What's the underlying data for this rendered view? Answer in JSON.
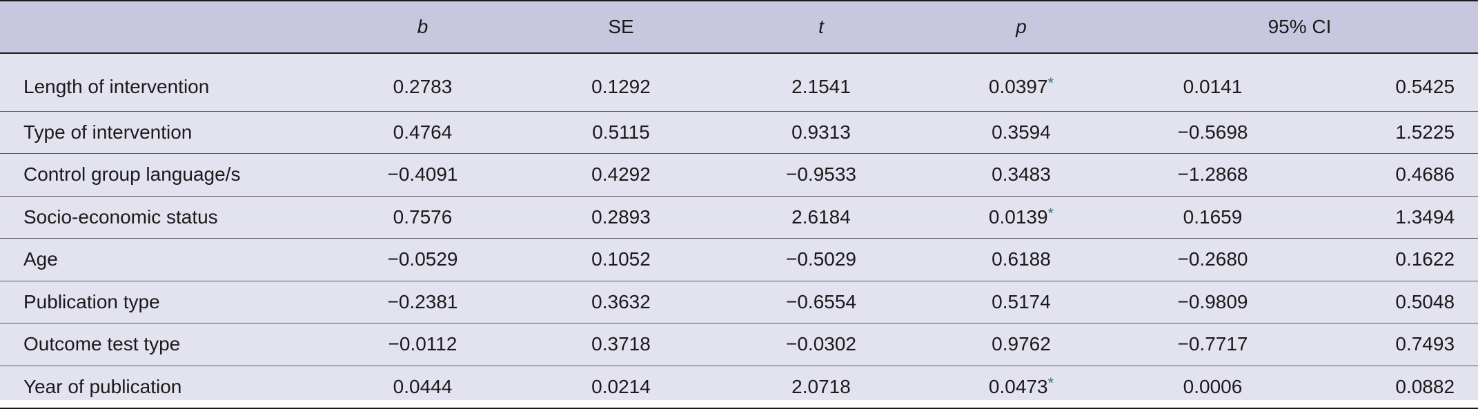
{
  "table": {
    "headers": {
      "b": "b",
      "se": "SE",
      "t": "t",
      "p": "p",
      "ci": "95% CI"
    },
    "sig_marker": "*",
    "rows": [
      {
        "label": "Length of intervention",
        "b": "0.2783",
        "se": "0.1292",
        "t": "2.1541",
        "p": "0.0397",
        "p_sig": "*",
        "ci_lower": "0.0141",
        "ci_upper": "0.5425"
      },
      {
        "label": "Type of intervention",
        "b": "0.4764",
        "se": "0.5115",
        "t": "0.9313",
        "p": "0.3594",
        "p_sig": "",
        "ci_lower": "−0.5698",
        "ci_upper": "1.5225"
      },
      {
        "label": "Control group language/s",
        "b": "−0.4091",
        "se": "0.4292",
        "t": "−0.9533",
        "p": "0.3483",
        "p_sig": "",
        "ci_lower": "−1.2868",
        "ci_upper": "0.4686"
      },
      {
        "label": "Socio-economic status",
        "b": "0.7576",
        "se": "0.2893",
        "t": "2.6184",
        "p": "0.0139",
        "p_sig": "*",
        "ci_lower": "0.1659",
        "ci_upper": "1.3494"
      },
      {
        "label": "Age",
        "b": "−0.0529",
        "se": "0.1052",
        "t": "−0.5029",
        "p": "0.6188",
        "p_sig": "",
        "ci_lower": "−0.2680",
        "ci_upper": "0.1622"
      },
      {
        "label": "Publication type",
        "b": "−0.2381",
        "se": "0.3632",
        "t": "−0.6554",
        "p": "0.5174",
        "p_sig": "",
        "ci_lower": "−0.9809",
        "ci_upper": "0.5048"
      },
      {
        "label": "Outcome test type",
        "b": "−0.0112",
        "se": "0.3718",
        "t": "−0.0302",
        "p": "0.9762",
        "p_sig": "",
        "ci_lower": "−0.7717",
        "ci_upper": "0.7493"
      },
      {
        "label": "Year of publication",
        "b": "0.0444",
        "se": "0.0214",
        "t": "2.0718",
        "p": "0.0473",
        "p_sig": "*",
        "ci_lower": "0.0006",
        "ci_upper": "0.0882"
      }
    ]
  }
}
